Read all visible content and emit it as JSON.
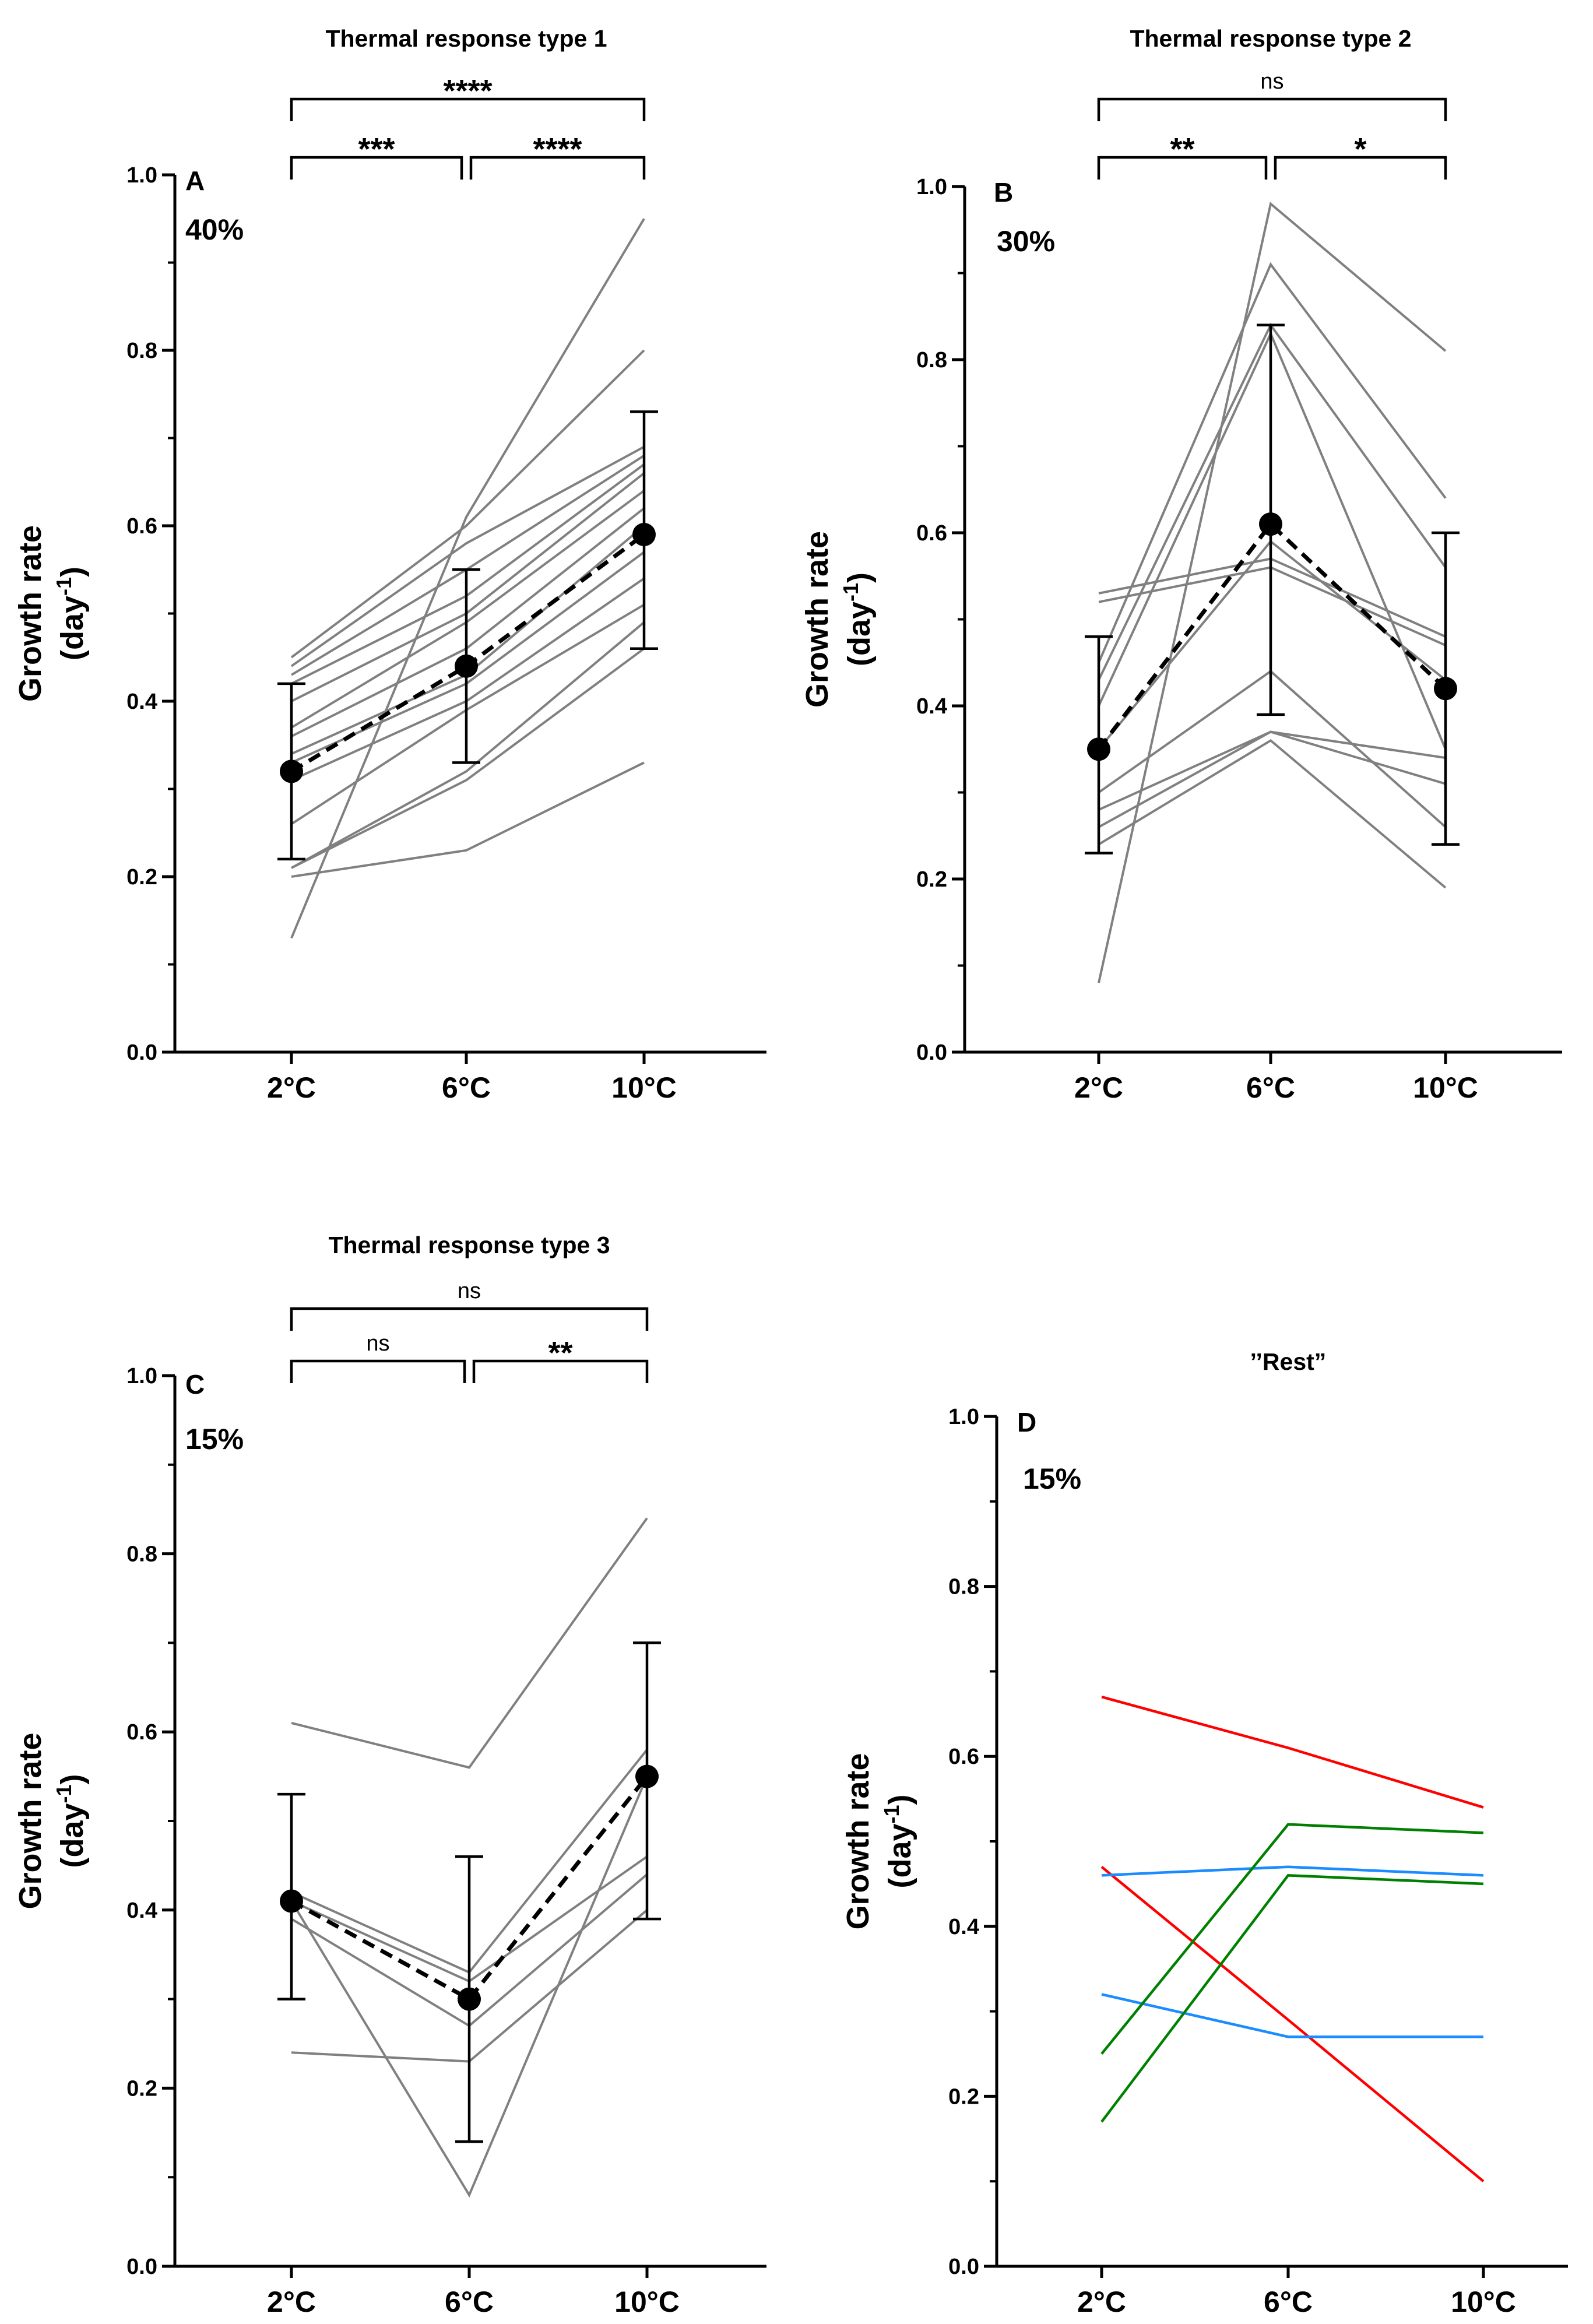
{
  "chart_data": [
    {
      "panel": "A",
      "type": "line",
      "title": "Thermal response type 1",
      "percent": "40%",
      "ylabel": "Growth rate",
      "ylabel_unit": "(day-1)",
      "ylabel_unit_base": "(day",
      "ylabel_unit_sup": "-1",
      "ylabel_unit_close": ")",
      "categories": [
        "2°C",
        "6°C",
        "10°C"
      ],
      "ylim": [
        0,
        1.0
      ],
      "yticks": [
        "0.0",
        "0.2",
        "0.4",
        "0.6",
        "0.8",
        "1.0"
      ],
      "series": [
        {
          "values": [
            0.13,
            0.61,
            0.95
          ]
        },
        {
          "values": [
            0.45,
            0.6,
            0.8
          ]
        },
        {
          "values": [
            0.44,
            0.58,
            0.69
          ]
        },
        {
          "values": [
            0.43,
            0.55,
            0.68
          ]
        },
        {
          "values": [
            0.42,
            0.52,
            0.67
          ]
        },
        {
          "values": [
            0.4,
            0.5,
            0.66
          ]
        },
        {
          "values": [
            0.37,
            0.49,
            0.64
          ]
        },
        {
          "values": [
            0.36,
            0.46,
            0.62
          ]
        },
        {
          "values": [
            0.34,
            0.43,
            0.6
          ]
        },
        {
          "values": [
            0.33,
            0.42,
            0.57
          ]
        },
        {
          "values": [
            0.31,
            0.4,
            0.54
          ]
        },
        {
          "values": [
            0.26,
            0.39,
            0.51
          ]
        },
        {
          "values": [
            0.21,
            0.32,
            0.49
          ]
        },
        {
          "values": [
            0.21,
            0.31,
            0.46
          ]
        },
        {
          "values": [
            0.2,
            0.23,
            0.33
          ]
        }
      ],
      "mean": [
        0.32,
        0.44,
        0.59
      ],
      "error_low": [
        0.22,
        0.33,
        0.46
      ],
      "error_high": [
        0.42,
        0.55,
        0.73
      ],
      "brackets": [
        {
          "from": 0,
          "to": 1,
          "label": "***",
          "level": 1
        },
        {
          "from": 1,
          "to": 2,
          "label": "****",
          "level": 1
        },
        {
          "from": 0,
          "to": 2,
          "label": "****",
          "level": 2
        }
      ]
    },
    {
      "panel": "B",
      "type": "line",
      "title": "Thermal response type 2",
      "percent": "30%",
      "ylabel": "Growth rate",
      "ylabel_unit": "(day-1)",
      "ylabel_unit_base": "(day",
      "ylabel_unit_sup": "-1",
      "ylabel_unit_close": ")",
      "categories": [
        "2°C",
        "6°C",
        "10°C"
      ],
      "ylim": [
        0,
        1.0
      ],
      "yticks": [
        "0.0",
        "0.2",
        "0.4",
        "0.6",
        "0.8",
        "1.0"
      ],
      "series": [
        {
          "values": [
            0.08,
            0.98,
            0.81
          ]
        },
        {
          "values": [
            0.45,
            0.91,
            0.64
          ]
        },
        {
          "values": [
            0.43,
            0.84,
            0.56
          ]
        },
        {
          "values": [
            0.4,
            0.83,
            0.35
          ]
        },
        {
          "values": [
            0.53,
            0.57,
            0.48
          ]
        },
        {
          "values": [
            0.52,
            0.56,
            0.47
          ]
        },
        {
          "values": [
            0.35,
            0.59,
            0.43
          ]
        },
        {
          "values": [
            0.3,
            0.44,
            0.26
          ]
        },
        {
          "values": [
            0.28,
            0.37,
            0.34
          ]
        },
        {
          "values": [
            0.26,
            0.37,
            0.31
          ]
        },
        {
          "values": [
            0.24,
            0.36,
            0.19
          ]
        }
      ],
      "mean": [
        0.35,
        0.61,
        0.42
      ],
      "error_low": [
        0.23,
        0.39,
        0.24
      ],
      "error_high": [
        0.48,
        0.84,
        0.6
      ],
      "brackets": [
        {
          "from": 0,
          "to": 1,
          "label": "**",
          "level": 1
        },
        {
          "from": 1,
          "to": 2,
          "label": "*",
          "level": 1
        },
        {
          "from": 0,
          "to": 2,
          "label": "ns",
          "level": 2
        }
      ]
    },
    {
      "panel": "C",
      "type": "line",
      "title": "Thermal response type 3",
      "percent": "15%",
      "ylabel": "Growth rate",
      "ylabel_unit": "(day-1)",
      "ylabel_unit_base": "(day",
      "ylabel_unit_sup": "-1",
      "ylabel_unit_close": ")",
      "categories": [
        "2°C",
        "6°C",
        "10°C"
      ],
      "ylim": [
        0,
        1.0
      ],
      "yticks": [
        "0.0",
        "0.2",
        "0.4",
        "0.6",
        "0.8",
        "1.0"
      ],
      "series": [
        {
          "values": [
            0.61,
            0.56,
            0.84
          ]
        },
        {
          "values": [
            0.42,
            0.33,
            0.58
          ]
        },
        {
          "values": [
            0.41,
            0.32,
            0.46
          ]
        },
        {
          "values": [
            0.39,
            0.27,
            0.44
          ]
        },
        {
          "values": [
            0.41,
            0.08,
            0.55
          ]
        },
        {
          "values": [
            0.24,
            0.23,
            0.4
          ]
        }
      ],
      "mean": [
        0.41,
        0.3,
        0.55
      ],
      "error_low": [
        0.3,
        0.14,
        0.39
      ],
      "error_high": [
        0.53,
        0.46,
        0.7
      ],
      "brackets": [
        {
          "from": 0,
          "to": 1,
          "label": "ns",
          "level": 1
        },
        {
          "from": 1,
          "to": 2,
          "label": "**",
          "level": 1
        },
        {
          "from": 0,
          "to": 2,
          "label": "ns",
          "level": 2
        }
      ]
    },
    {
      "panel": "D",
      "type": "line",
      "title": "’’Rest”",
      "percent": "15%",
      "ylabel": "Growth rate",
      "ylabel_unit": "(day-1)",
      "ylabel_unit_base": "(day",
      "ylabel_unit_sup": "-1",
      "ylabel_unit_close": ")",
      "categories": [
        "2°C",
        "6°C",
        "10°C"
      ],
      "ylim": [
        0,
        1.0
      ],
      "yticks": [
        "0.0",
        "0.2",
        "0.4",
        "0.6",
        "0.8",
        "1.0"
      ],
      "series": [
        {
          "color": "#ff0000",
          "values": [
            0.67,
            0.61,
            0.54
          ]
        },
        {
          "color": "#ff0000",
          "values": [
            0.47,
            0.29,
            0.1
          ]
        },
        {
          "color": "#1a8cff",
          "values": [
            0.46,
            0.47,
            0.46
          ]
        },
        {
          "color": "#1a8cff",
          "values": [
            0.32,
            0.27,
            0.27
          ]
        },
        {
          "color": "#008000",
          "values": [
            0.25,
            0.52,
            0.51
          ]
        },
        {
          "color": "#008000",
          "values": [
            0.17,
            0.46,
            0.45
          ]
        }
      ]
    }
  ],
  "colors": {
    "individual_line": "#808080",
    "mean": "#000000",
    "axis": "#000000"
  }
}
